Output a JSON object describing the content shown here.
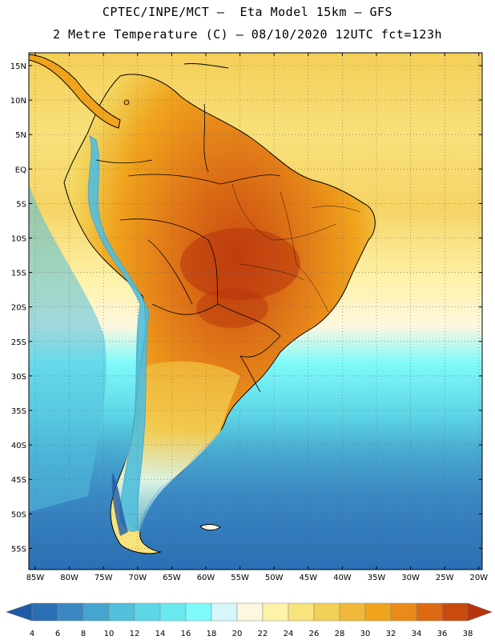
{
  "header": {
    "line1": "CPTEC/INPE/MCT –  Eta Model 15km – GFS",
    "line2": "2 Metre Temperature (C) – 08/10/2020 12UTC fct=123h"
  },
  "axes": {
    "latitude_labels": [
      "15N",
      "10N",
      "5N",
      "EQ",
      "5S",
      "10S",
      "15S",
      "20S",
      "25S",
      "30S",
      "35S",
      "40S",
      "45S",
      "50S",
      "55S"
    ],
    "longitude_labels": [
      "85W",
      "80W",
      "75W",
      "70W",
      "65W",
      "60W",
      "55W",
      "50W",
      "45W",
      "40W",
      "35W",
      "30W",
      "25W",
      "20W"
    ]
  },
  "colorbar": {
    "values": [
      "4",
      "6",
      "8",
      "10",
      "12",
      "14",
      "16",
      "18",
      "20",
      "22",
      "24",
      "26",
      "28",
      "30",
      "32",
      "34",
      "36",
      "38"
    ],
    "colors": [
      "#1f5aa6",
      "#2a6fb5",
      "#3a87c2",
      "#46a5cf",
      "#52bfdc",
      "#5dd6e6",
      "#6ae8ef",
      "#7ffafa",
      "#d6f7fb",
      "#fdf7e0",
      "#fdf2a8",
      "#f8e47c",
      "#f2cf55",
      "#f0b93a",
      "#f0a31c",
      "#e98a1a",
      "#dd6a12",
      "#c94a0e",
      "#b8330c"
    ]
  },
  "map_colors": {
    "ocean_warm": "#f4cf57",
    "ocean_mid": "#fdf7e0",
    "ocean_cool": "#7ffafa",
    "ocean_cold": "#46a5cf",
    "ocean_deep": "#2a6fb5",
    "land_hot": "#c94a0e",
    "land_warm": "#e98a1a",
    "land_mild": "#f0b93a",
    "andes": "#52bfdc",
    "coast": "#000000"
  }
}
